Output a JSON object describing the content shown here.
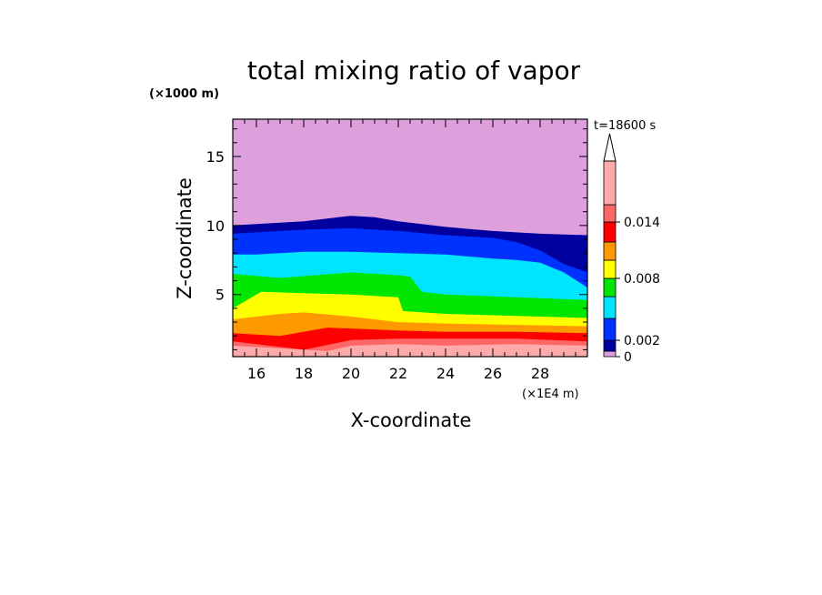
{
  "chart_data": {
    "type": "heatmap",
    "title": "total mixing ratio of vapor",
    "xlabel": "X-coordinate",
    "ylabel": "Z-coordinate",
    "x_unit": "(×1E4 m)",
    "y_unit": "(×1000 m)",
    "time_label": "t=18600 s",
    "xlim": [
      15,
      30
    ],
    "ylim": [
      0.5,
      17.7
    ],
    "x_ticks": [
      "16",
      "18",
      "20",
      "22",
      "24",
      "26",
      "28"
    ],
    "y_ticks": [
      "5",
      "10",
      "15"
    ],
    "colorbar": {
      "levels": [
        0,
        0.001,
        0.002,
        0.004,
        0.006,
        0.008,
        0.01,
        0.012,
        0.014,
        0.016
      ],
      "labels": [
        "0",
        "0.002",
        "0.008",
        "0.014"
      ],
      "colors": [
        "#dda0dd",
        "#0000a0",
        "#0032ff",
        "#00e5ff",
        "#00e600",
        "#ffff00",
        "#ff9900",
        "#ff0000",
        "#ff6666",
        "#ffaaaa"
      ],
      "extend": "max"
    },
    "contour_bands": [
      {
        "min_level": 0,
        "color": "#dda0dd",
        "top_profile_x": [
          15,
          30
        ],
        "top_profile_z": [
          17.7,
          17.7
        ]
      },
      {
        "min_level": 0.001,
        "color": "#0000a0",
        "top_profile_x": [
          15,
          18,
          20,
          21,
          22,
          24,
          26,
          28,
          30
        ],
        "top_profile_z": [
          10.0,
          10.3,
          10.7,
          10.6,
          10.3,
          9.9,
          9.6,
          9.4,
          9.3
        ]
      },
      {
        "min_level": 0.002,
        "color": "#0032ff",
        "top_profile_x": [
          15,
          18,
          20,
          22,
          24,
          26,
          27,
          28,
          29,
          30
        ],
        "top_profile_z": [
          9.4,
          9.7,
          9.8,
          9.6,
          9.3,
          9.1,
          8.8,
          8.2,
          7.2,
          6.6
        ]
      },
      {
        "min_level": 0.004,
        "color": "#00e5ff",
        "top_profile_x": [
          15,
          16,
          18,
          20,
          22,
          24,
          26,
          27,
          28,
          29,
          30
        ],
        "top_profile_z": [
          7.9,
          7.9,
          8.1,
          8.1,
          8.0,
          7.9,
          7.6,
          7.5,
          7.3,
          6.6,
          5.5
        ]
      },
      {
        "min_level": 0.006,
        "color": "#00e600",
        "top_profile_x": [
          15,
          17,
          20,
          22,
          22.5,
          23,
          24,
          30
        ],
        "top_profile_z": [
          6.5,
          6.2,
          6.6,
          6.4,
          6.3,
          5.2,
          5.0,
          4.6
        ]
      },
      {
        "min_level": 0.008,
        "color": "#ffff00",
        "top_profile_x": [
          15,
          16.2,
          18,
          20,
          22,
          22.2,
          24,
          30
        ],
        "top_profile_z": [
          4.0,
          5.2,
          5.1,
          5.0,
          4.8,
          3.8,
          3.6,
          3.3
        ]
      },
      {
        "min_level": 0.01,
        "color": "#ff9900",
        "top_profile_x": [
          15,
          17,
          18,
          20,
          22,
          24,
          30
        ],
        "top_profile_z": [
          3.2,
          3.6,
          3.7,
          3.4,
          3.0,
          2.9,
          2.7
        ]
      },
      {
        "min_level": 0.012,
        "color": "#ff0000",
        "top_profile_x": [
          15,
          17,
          19,
          22,
          24,
          27,
          30
        ],
        "top_profile_z": [
          2.2,
          2.0,
          2.6,
          2.4,
          2.3,
          2.3,
          2.2
        ]
      },
      {
        "min_level": 0.014,
        "color": "#ff6666",
        "top_profile_x": [
          15,
          16,
          18,
          20,
          22,
          24,
          27,
          30
        ],
        "top_profile_z": [
          1.6,
          1.4,
          1.0,
          1.7,
          1.8,
          1.8,
          1.8,
          1.6
        ]
      },
      {
        "min_level": 0.016,
        "color": "#ffaaaa",
        "top_profile_x": [
          15,
          19,
          20,
          22,
          24,
          27,
          30
        ],
        "top_profile_z": [
          1.3,
          0.9,
          1.3,
          1.4,
          1.3,
          1.4,
          1.3
        ]
      }
    ]
  }
}
